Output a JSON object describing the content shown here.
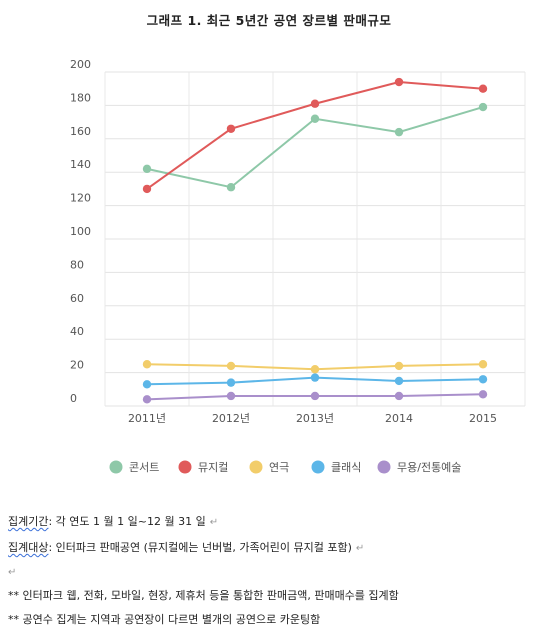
{
  "title": "그래프 1. 최근 5년간 공연 장르별 판매규모",
  "chart_data": {
    "type": "line",
    "title": "",
    "xlabel": "",
    "ylabel": "",
    "x": [
      "2011년",
      "2012년",
      "2013년",
      "2014",
      "2015"
    ],
    "y_ticks": [
      "0",
      "20",
      "40",
      "60",
      "80",
      "100",
      "120",
      "140",
      "160",
      "180",
      "200"
    ],
    "ylim": [
      0,
      200
    ],
    "grid": true,
    "legend_position": "bottom",
    "series": [
      {
        "name": "콘서트",
        "color": "#8ec8a8",
        "values": [
          142,
          131,
          172,
          164,
          179
        ]
      },
      {
        "name": "뮤지컬",
        "color": "#e05a5a",
        "values": [
          130,
          166,
          181,
          194,
          190
        ]
      },
      {
        "name": "연극",
        "color": "#f2cd6a",
        "values": [
          25,
          24,
          22,
          24,
          25
        ]
      },
      {
        "name": "클래식",
        "color": "#5cb6e8",
        "values": [
          13,
          14,
          17,
          15,
          16
        ]
      },
      {
        "name": "무용/전통예술",
        "color": "#a98fcb",
        "values": [
          4,
          6,
          6,
          6,
          7
        ]
      }
    ]
  },
  "notes": {
    "period_label": "집계기간",
    "period_text": ": 각 연도 1 월 1 일~12 월 31 일",
    "target_label": "집계대상",
    "target_text": ": 인터파크 판매공연 (뮤지컬에는 넌버벌, 가족어린이 뮤지컬 포함)",
    "paragraph_mark": "↵",
    "line3": "** 인터파크 웹, 전화, 모바일, 현장, 제휴처 등을 통합한 판매금액, 판매매수를 집계함",
    "line4": "** 공연수 집계는 지역과 공연장이 다르면 별개의 공연으로 카운팅함"
  }
}
